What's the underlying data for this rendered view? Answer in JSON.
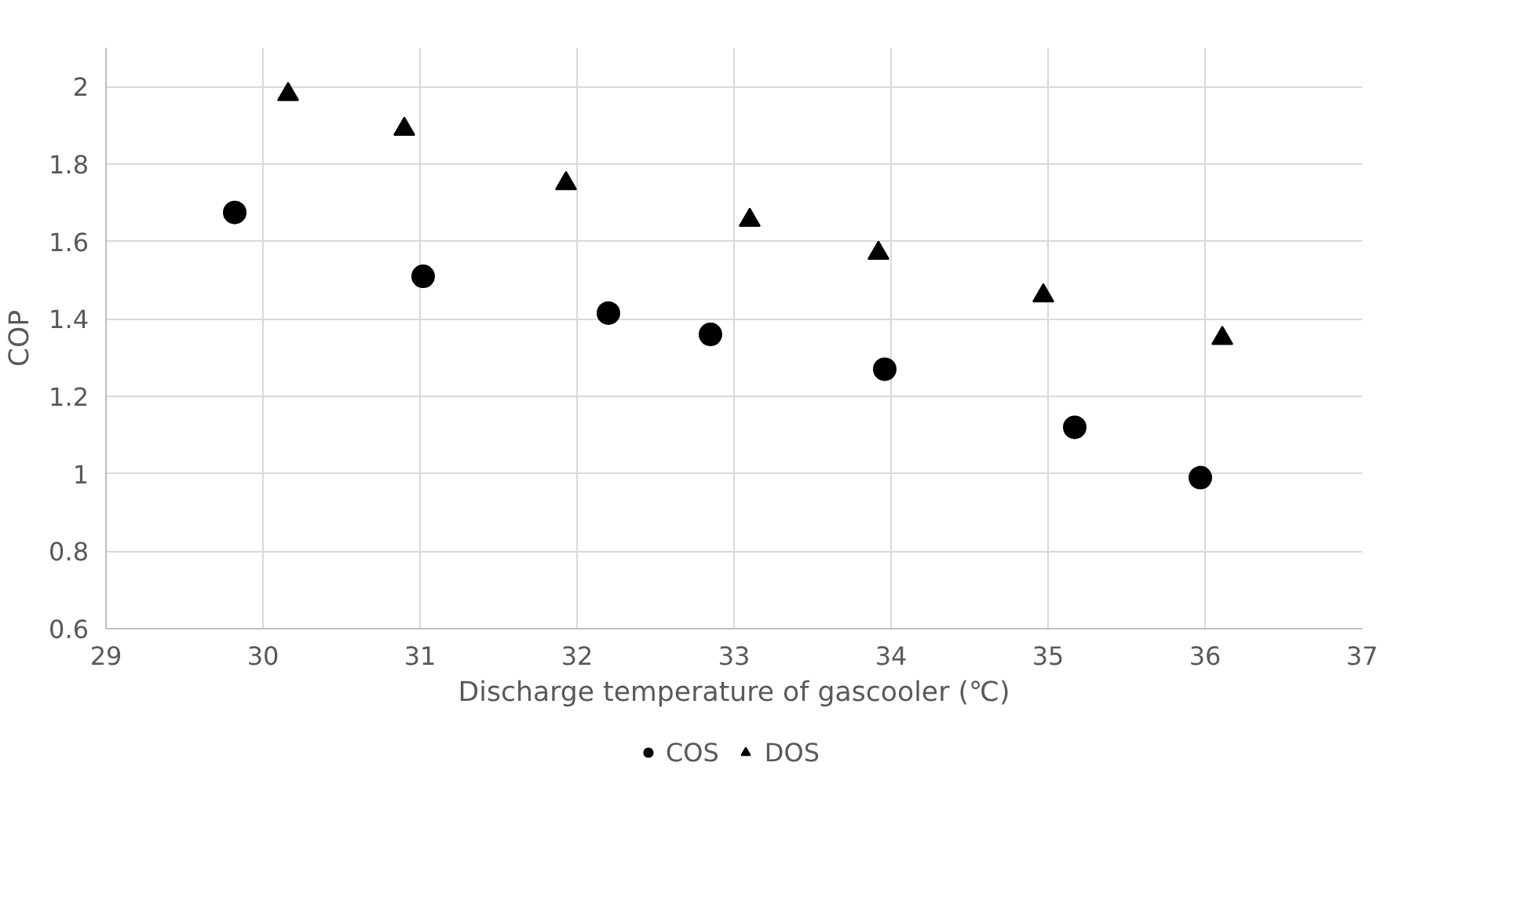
{
  "chart_data": {
    "type": "scatter",
    "xlabel": "Discharge temperature of gascooler (℃)",
    "ylabel": "COP",
    "xlim": [
      29,
      37
    ],
    "xticks": [
      29,
      30,
      31,
      32,
      33,
      34,
      35,
      36,
      37
    ],
    "ylim": [
      0.6,
      2.1
    ],
    "yticks": [
      0.6,
      0.8,
      1,
      1.2,
      1.4,
      1.6,
      1.8,
      2
    ],
    "grid": true,
    "legend": "bottom",
    "series": [
      {
        "name": "COS",
        "color": "#000000",
        "marker": "circle",
        "x": [
          29.82,
          31.02,
          32.2,
          32.85,
          33.96,
          35.17,
          35.97
        ],
        "values": [
          1.675,
          1.51,
          1.415,
          1.36,
          1.27,
          1.12,
          0.99
        ]
      },
      {
        "name": "DOS",
        "color": "#000000",
        "marker": "triangle",
        "x": [
          30.16,
          30.9,
          31.93,
          33.1,
          33.92,
          34.97,
          36.11
        ],
        "values": [
          1.98,
          1.89,
          1.75,
          1.655,
          1.57,
          1.46,
          1.35
        ]
      }
    ]
  }
}
